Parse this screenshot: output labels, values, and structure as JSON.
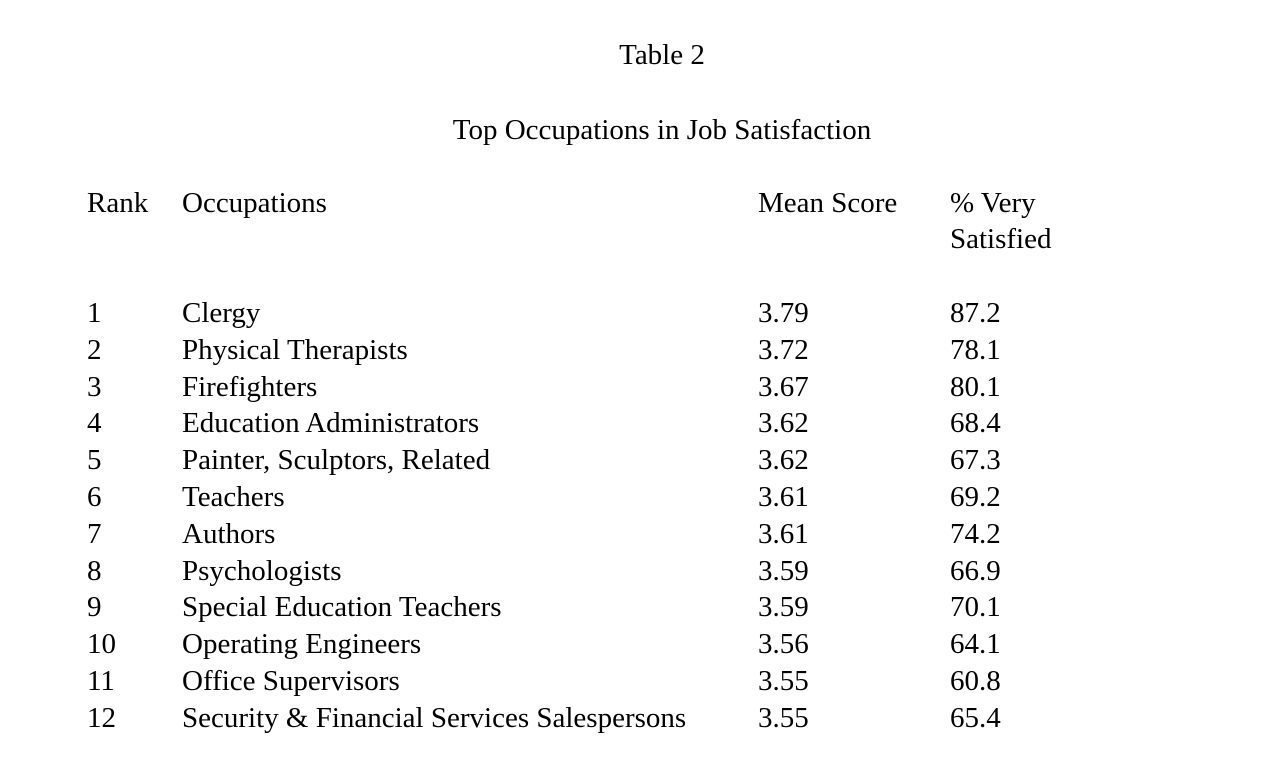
{
  "table_number": "Table 2",
  "table_title": "Top Occupations in Job Satisfaction",
  "headers": {
    "rank": "Rank",
    "occupation": "Occupations",
    "mean_score": "Mean Score",
    "pct_line1": "% Very",
    "pct_line2": "Satisfied"
  },
  "rows": [
    {
      "rank": "1",
      "occupation": "Clergy",
      "mean": "3.79",
      "pct": "87.2"
    },
    {
      "rank": "2",
      "occupation": "Physical Therapists",
      "mean": "3.72",
      "pct": "78.1"
    },
    {
      "rank": "3",
      "occupation": "Firefighters",
      "mean": "3.67",
      "pct": "80.1"
    },
    {
      "rank": "4",
      "occupation": "Education Administrators",
      "mean": "3.62",
      "pct": "68.4"
    },
    {
      "rank": "5",
      "occupation": "Painter, Sculptors, Related",
      "mean": "3.62",
      "pct": "67.3"
    },
    {
      "rank": "6",
      "occupation": "Teachers",
      "mean": "3.61",
      "pct": "69.2"
    },
    {
      "rank": "7",
      "occupation": "Authors",
      "mean": "3.61",
      "pct": "74.2"
    },
    {
      "rank": "8",
      "occupation": "Psychologists",
      "mean": "3.59",
      "pct": "66.9"
    },
    {
      "rank": "9",
      "occupation": "Special Education Teachers",
      "mean": "3.59",
      "pct": "70.1"
    },
    {
      "rank": "10",
      "occupation": "Operating Engineers",
      "mean": "3.56",
      "pct": "64.1"
    },
    {
      "rank": "11",
      "occupation": "Office Supervisors",
      "mean": "3.55",
      "pct": "60.8"
    },
    {
      "rank": "12",
      "occupation": "Security & Financial Services Salespersons",
      "mean": "3.55",
      "pct": "65.4"
    }
  ]
}
